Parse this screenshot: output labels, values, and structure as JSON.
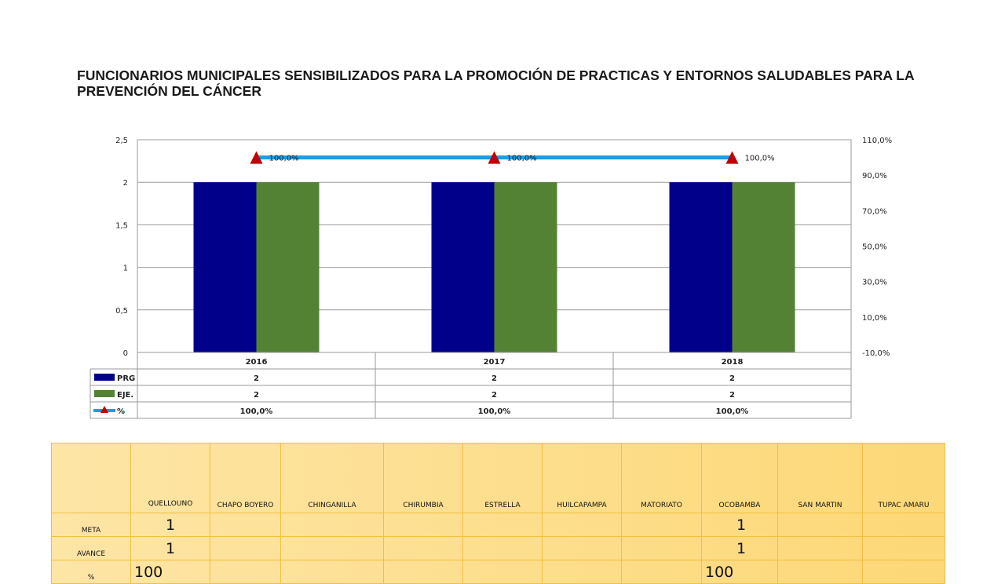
{
  "title": "FUNCIONARIOS MUNICIPALES SENSIBILIZADOS PARA LA PROMOCIÓN DE PRACTICAS Y ENTORNOS SALUDABLES PARA LA PREVENCIÓN DEL CÁNCER",
  "chart_data": {
    "type": "bar",
    "categories": [
      "2016",
      "2017",
      "2018"
    ],
    "series": [
      {
        "name": "PRG",
        "values": [
          2,
          2,
          2
        ],
        "color": "#00008b",
        "axis": "left"
      },
      {
        "name": "EJE.",
        "values": [
          2,
          2,
          2
        ],
        "color": "#548235",
        "axis": "left"
      },
      {
        "name": "%",
        "values": [
          100.0,
          100.0,
          100.0
        ],
        "type": "line",
        "axis": "right",
        "color": "#1b9de2",
        "marker_color": "#c00000",
        "labels": [
          "100,0%",
          "100,0%",
          "100,0%"
        ]
      }
    ],
    "y_left": {
      "ticks": [
        "0",
        "0,5",
        "1",
        "1,5",
        "2",
        "2,5"
      ],
      "ylim": [
        0,
        2.5
      ]
    },
    "y_right": {
      "ticks": [
        "-10,0%",
        "10,0%",
        "30,0%",
        "50,0%",
        "70,0%",
        "90,0%",
        "110,0%"
      ],
      "ylim": [
        -10,
        110
      ]
    },
    "data_table": {
      "rows": [
        {
          "label": "PRG",
          "cells": [
            "2",
            "2",
            "2"
          ]
        },
        {
          "label": "EJE.",
          "cells": [
            "2",
            "2",
            "2"
          ]
        },
        {
          "label": "%",
          "cells": [
            "100,0%",
            "100,0%",
            "100,0%"
          ]
        }
      ]
    },
    "grid": true,
    "legend": "data-table"
  },
  "table": {
    "columns": [
      "",
      "QUELLOUNO",
      "CHAPO BOYERO",
      "CHINGANILLA",
      "CHIRUMBIA",
      "ESTRELLA",
      "HUILCAPAMPA",
      "MATORIATO",
      "OCOBAMBA",
      "SAN MARTIN",
      "TUPAC AMARU"
    ],
    "rows": [
      {
        "label": "META",
        "cells": [
          "1",
          "",
          "",
          "",
          "",
          "",
          "",
          "1",
          "",
          ""
        ]
      },
      {
        "label": "AVANCE",
        "cells": [
          "1",
          "",
          "",
          "",
          "",
          "",
          "",
          "1",
          "",
          ""
        ]
      },
      {
        "label": "%",
        "cells": [
          "100",
          "",
          "",
          "",
          "",
          "",
          "",
          "100",
          "",
          ""
        ]
      }
    ]
  }
}
